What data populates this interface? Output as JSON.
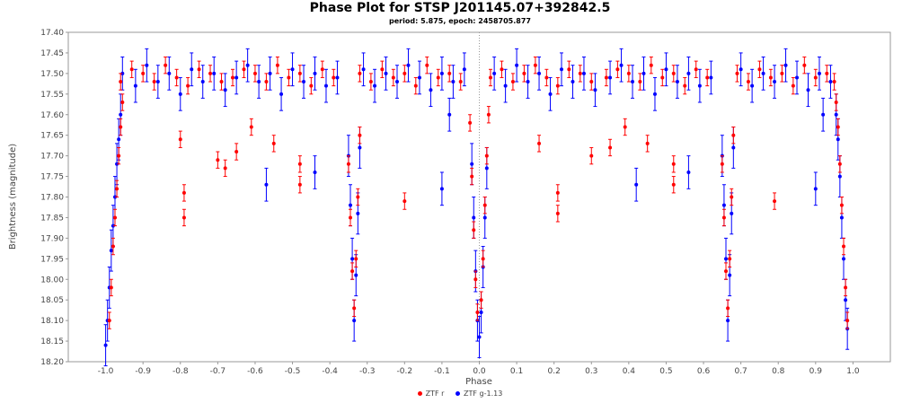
{
  "chart_data": {
    "type": "scatter",
    "title": "Phase Plot for STSP J201145.07+392842.5",
    "subtitle": "period: 5.875, epoch: 2458705.877",
    "xlabel": "Phase",
    "ylabel": "Brightness (magnitude)",
    "xlim": [
      -1.1,
      1.1
    ],
    "ylim": [
      17.4,
      18.2
    ],
    "y_inverted": true,
    "grid": false,
    "x_ticks": [
      "-1.0",
      "-0.9",
      "-0.8",
      "-0.7",
      "-0.6",
      "-0.5",
      "-0.4",
      "-0.3",
      "-0.2",
      "-0.1",
      "0.0",
      "0.1",
      "0.2",
      "0.3",
      "0.4",
      "0.5",
      "0.6",
      "0.7",
      "0.8",
      "0.9",
      "1.0"
    ],
    "y_ticks": [
      "17.40",
      "17.45",
      "17.50",
      "17.55",
      "17.60",
      "17.65",
      "17.70",
      "17.75",
      "17.80",
      "17.85",
      "17.90",
      "17.95",
      "18.00",
      "18.05",
      "18.10",
      "18.15",
      "18.20"
    ],
    "legend_position": "bottom-center",
    "series": [
      {
        "name": "ZTF r",
        "color": "#ff0000",
        "points": [
          [
            -0.96,
            17.52,
            0.02
          ],
          [
            -0.93,
            17.49,
            0.02
          ],
          [
            -0.9,
            17.5,
            0.02
          ],
          [
            -0.87,
            17.52,
            0.02
          ],
          [
            -0.84,
            17.48,
            0.02
          ],
          [
            -0.81,
            17.51,
            0.02
          ],
          [
            -0.78,
            17.53,
            0.02
          ],
          [
            -0.75,
            17.49,
            0.02
          ],
          [
            -0.72,
            17.5,
            0.02
          ],
          [
            -0.69,
            17.52,
            0.02
          ],
          [
            -0.66,
            17.51,
            0.02
          ],
          [
            -0.63,
            17.49,
            0.02
          ],
          [
            -0.6,
            17.5,
            0.02
          ],
          [
            -0.57,
            17.52,
            0.02
          ],
          [
            -0.54,
            17.48,
            0.02
          ],
          [
            -0.51,
            17.51,
            0.02
          ],
          [
            -0.48,
            17.5,
            0.02
          ],
          [
            -0.45,
            17.53,
            0.02
          ],
          [
            -0.42,
            17.49,
            0.02
          ],
          [
            -0.39,
            17.51,
            0.02
          ],
          [
            -0.32,
            17.5,
            0.02
          ],
          [
            -0.29,
            17.52,
            0.02
          ],
          [
            -0.26,
            17.49,
            0.02
          ],
          [
            -0.23,
            17.51,
            0.02
          ],
          [
            -0.2,
            17.5,
            0.02
          ],
          [
            -0.17,
            17.53,
            0.02
          ],
          [
            -0.14,
            17.48,
            0.02
          ],
          [
            -0.11,
            17.51,
            0.02
          ],
          [
            -0.08,
            17.5,
            0.02
          ],
          [
            -0.05,
            17.52,
            0.02
          ],
          [
            0.03,
            17.51,
            0.02
          ],
          [
            0.06,
            17.49,
            0.02
          ],
          [
            0.09,
            17.52,
            0.02
          ],
          [
            0.12,
            17.5,
            0.02
          ],
          [
            0.15,
            17.48,
            0.02
          ],
          [
            0.18,
            17.51,
            0.02
          ],
          [
            0.21,
            17.53,
            0.02
          ],
          [
            0.24,
            17.49,
            0.02
          ],
          [
            0.27,
            17.5,
            0.02
          ],
          [
            0.3,
            17.52,
            0.02
          ],
          [
            0.34,
            17.51,
            0.02
          ],
          [
            0.37,
            17.49,
            0.02
          ],
          [
            0.4,
            17.5,
            0.02
          ],
          [
            0.43,
            17.52,
            0.02
          ],
          [
            0.46,
            17.48,
            0.02
          ],
          [
            0.49,
            17.51,
            0.02
          ],
          [
            0.52,
            17.5,
            0.02
          ],
          [
            0.55,
            17.53,
            0.02
          ],
          [
            0.58,
            17.49,
            0.02
          ],
          [
            0.61,
            17.51,
            0.02
          ],
          [
            0.69,
            17.5,
            0.02
          ],
          [
            0.72,
            17.52,
            0.02
          ],
          [
            0.75,
            17.49,
            0.02
          ],
          [
            0.78,
            17.51,
            0.02
          ],
          [
            0.81,
            17.5,
            0.02
          ],
          [
            0.84,
            17.53,
            0.02
          ],
          [
            0.87,
            17.48,
            0.02
          ],
          [
            0.9,
            17.51,
            0.02
          ],
          [
            0.93,
            17.5,
            0.02
          ],
          [
            0.95,
            17.52,
            0.02
          ],
          [
            -0.8,
            17.66,
            0.02
          ],
          [
            -0.79,
            17.79,
            0.02
          ],
          [
            -0.79,
            17.85,
            0.02
          ],
          [
            -0.7,
            17.71,
            0.02
          ],
          [
            -0.68,
            17.73,
            0.02
          ],
          [
            -0.65,
            17.69,
            0.02
          ],
          [
            -0.61,
            17.63,
            0.02
          ],
          [
            -0.55,
            17.67,
            0.02
          ],
          [
            -0.48,
            17.72,
            0.02
          ],
          [
            -0.48,
            17.77,
            0.02
          ],
          [
            -0.2,
            17.81,
            0.02
          ],
          [
            0.16,
            17.67,
            0.02
          ],
          [
            0.21,
            17.79,
            0.02
          ],
          [
            0.21,
            17.84,
            0.02
          ],
          [
            0.3,
            17.7,
            0.02
          ],
          [
            0.35,
            17.68,
            0.02
          ],
          [
            0.39,
            17.63,
            0.02
          ],
          [
            0.45,
            17.67,
            0.02
          ],
          [
            0.52,
            17.72,
            0.02
          ],
          [
            0.52,
            17.77,
            0.02
          ],
          [
            0.79,
            17.81,
            0.02
          ],
          [
            -0.99,
            18.1,
            0.02
          ],
          [
            -0.985,
            18.02,
            0.02
          ],
          [
            -0.98,
            17.92,
            0.02
          ],
          [
            -0.975,
            17.85,
            0.02
          ],
          [
            -0.97,
            17.78,
            0.02
          ],
          [
            -0.965,
            17.7,
            0.02
          ],
          [
            -0.96,
            17.63,
            0.02
          ],
          [
            -0.955,
            17.57,
            0.02
          ],
          [
            -0.35,
            17.72,
            0.02
          ],
          [
            -0.345,
            17.85,
            0.02
          ],
          [
            -0.34,
            17.98,
            0.02
          ],
          [
            -0.335,
            18.07,
            0.02
          ],
          [
            -0.33,
            17.95,
            0.02
          ],
          [
            -0.325,
            17.8,
            0.02
          ],
          [
            -0.32,
            17.65,
            0.02
          ],
          [
            -0.025,
            17.62,
            0.02
          ],
          [
            -0.02,
            17.75,
            0.02
          ],
          [
            -0.015,
            17.88,
            0.02
          ],
          [
            -0.01,
            18.0,
            0.02
          ],
          [
            -0.005,
            18.08,
            0.02
          ],
          [
            0.005,
            18.05,
            0.02
          ],
          [
            0.01,
            17.95,
            0.02
          ],
          [
            0.015,
            17.82,
            0.02
          ],
          [
            0.02,
            17.7,
            0.02
          ],
          [
            0.025,
            17.6,
            0.02
          ],
          [
            0.65,
            17.72,
            0.02
          ],
          [
            0.655,
            17.85,
            0.02
          ],
          [
            0.66,
            17.98,
            0.02
          ],
          [
            0.665,
            18.07,
            0.02
          ],
          [
            0.67,
            17.95,
            0.02
          ],
          [
            0.675,
            17.8,
            0.02
          ],
          [
            0.68,
            17.65,
            0.02
          ],
          [
            0.955,
            17.57,
            0.02
          ],
          [
            0.96,
            17.63,
            0.02
          ],
          [
            0.965,
            17.72,
            0.02
          ],
          [
            0.97,
            17.82,
            0.02
          ],
          [
            0.975,
            17.92,
            0.02
          ],
          [
            0.98,
            18.02,
            0.02
          ],
          [
            0.985,
            18.1,
            0.02
          ]
        ]
      },
      {
        "name": "ZTF g-1.13",
        "color": "#0000ff",
        "points": [
          [
            -0.955,
            17.5,
            0.04
          ],
          [
            -0.92,
            17.53,
            0.04
          ],
          [
            -0.89,
            17.48,
            0.04
          ],
          [
            -0.86,
            17.52,
            0.04
          ],
          [
            -0.83,
            17.5,
            0.04
          ],
          [
            -0.8,
            17.55,
            0.04
          ],
          [
            -0.77,
            17.49,
            0.04
          ],
          [
            -0.74,
            17.52,
            0.04
          ],
          [
            -0.71,
            17.5,
            0.04
          ],
          [
            -0.68,
            17.54,
            0.04
          ],
          [
            -0.65,
            17.51,
            0.04
          ],
          [
            -0.62,
            17.48,
            0.04
          ],
          [
            -0.59,
            17.52,
            0.04
          ],
          [
            -0.56,
            17.5,
            0.04
          ],
          [
            -0.53,
            17.55,
            0.04
          ],
          [
            -0.5,
            17.49,
            0.04
          ],
          [
            -0.47,
            17.52,
            0.04
          ],
          [
            -0.44,
            17.5,
            0.04
          ],
          [
            -0.41,
            17.53,
            0.04
          ],
          [
            -0.38,
            17.51,
            0.04
          ],
          [
            -0.31,
            17.49,
            0.04
          ],
          [
            -0.28,
            17.53,
            0.04
          ],
          [
            -0.25,
            17.5,
            0.04
          ],
          [
            -0.22,
            17.52,
            0.04
          ],
          [
            -0.19,
            17.48,
            0.04
          ],
          [
            -0.16,
            17.51,
            0.04
          ],
          [
            -0.13,
            17.54,
            0.04
          ],
          [
            -0.1,
            17.5,
            0.04
          ],
          [
            -0.07,
            17.52,
            0.04
          ],
          [
            -0.04,
            17.49,
            0.04
          ],
          [
            0.04,
            17.5,
            0.04
          ],
          [
            0.07,
            17.53,
            0.04
          ],
          [
            0.1,
            17.48,
            0.04
          ],
          [
            0.13,
            17.52,
            0.04
          ],
          [
            0.16,
            17.5,
            0.04
          ],
          [
            0.19,
            17.55,
            0.04
          ],
          [
            0.22,
            17.49,
            0.04
          ],
          [
            0.25,
            17.52,
            0.04
          ],
          [
            0.28,
            17.5,
            0.04
          ],
          [
            0.31,
            17.54,
            0.04
          ],
          [
            0.35,
            17.51,
            0.04
          ],
          [
            0.38,
            17.48,
            0.04
          ],
          [
            0.41,
            17.52,
            0.04
          ],
          [
            0.44,
            17.5,
            0.04
          ],
          [
            0.47,
            17.55,
            0.04
          ],
          [
            0.5,
            17.49,
            0.04
          ],
          [
            0.53,
            17.52,
            0.04
          ],
          [
            0.56,
            17.5,
            0.04
          ],
          [
            0.59,
            17.53,
            0.04
          ],
          [
            0.62,
            17.51,
            0.04
          ],
          [
            0.7,
            17.49,
            0.04
          ],
          [
            0.73,
            17.53,
            0.04
          ],
          [
            0.76,
            17.5,
            0.04
          ],
          [
            0.79,
            17.52,
            0.04
          ],
          [
            0.82,
            17.48,
            0.04
          ],
          [
            0.85,
            17.51,
            0.04
          ],
          [
            0.88,
            17.54,
            0.04
          ],
          [
            0.91,
            17.5,
            0.04
          ],
          [
            0.94,
            17.52,
            0.04
          ],
          [
            -0.57,
            17.77,
            0.04
          ],
          [
            -0.44,
            17.74,
            0.04
          ],
          [
            -0.1,
            17.78,
            0.04
          ],
          [
            -0.08,
            17.6,
            0.04
          ],
          [
            0.42,
            17.77,
            0.04
          ],
          [
            0.56,
            17.74,
            0.04
          ],
          [
            0.9,
            17.78,
            0.04
          ],
          [
            0.92,
            17.6,
            0.04
          ],
          [
            -1.0,
            18.16,
            0.05
          ],
          [
            -0.995,
            18.1,
            0.05
          ],
          [
            -0.99,
            18.02,
            0.05
          ],
          [
            -0.985,
            17.93,
            0.05
          ],
          [
            -0.98,
            17.87,
            0.05
          ],
          [
            -0.975,
            17.8,
            0.05
          ],
          [
            -0.97,
            17.72,
            0.05
          ],
          [
            -0.965,
            17.66,
            0.05
          ],
          [
            -0.96,
            17.6,
            0.05
          ],
          [
            -0.35,
            17.7,
            0.05
          ],
          [
            -0.345,
            17.82,
            0.05
          ],
          [
            -0.34,
            17.95,
            0.05
          ],
          [
            -0.335,
            18.1,
            0.05
          ],
          [
            -0.33,
            17.99,
            0.05
          ],
          [
            -0.325,
            17.84,
            0.05
          ],
          [
            -0.32,
            17.68,
            0.05
          ],
          [
            -0.02,
            17.72,
            0.05
          ],
          [
            -0.015,
            17.85,
            0.05
          ],
          [
            -0.01,
            17.98,
            0.05
          ],
          [
            -0.005,
            18.1,
            0.05
          ],
          [
            0.0,
            18.14,
            0.05
          ],
          [
            0.005,
            18.08,
            0.05
          ],
          [
            0.01,
            17.97,
            0.05
          ],
          [
            0.015,
            17.85,
            0.05
          ],
          [
            0.02,
            17.73,
            0.05
          ],
          [
            0.65,
            17.7,
            0.05
          ],
          [
            0.655,
            17.82,
            0.05
          ],
          [
            0.66,
            17.95,
            0.05
          ],
          [
            0.665,
            18.1,
            0.05
          ],
          [
            0.67,
            17.99,
            0.05
          ],
          [
            0.675,
            17.84,
            0.05
          ],
          [
            0.68,
            17.68,
            0.05
          ],
          [
            0.955,
            17.6,
            0.05
          ],
          [
            0.96,
            17.66,
            0.05
          ],
          [
            0.965,
            17.75,
            0.05
          ],
          [
            0.97,
            17.85,
            0.05
          ],
          [
            0.975,
            17.95,
            0.05
          ],
          [
            0.98,
            18.05,
            0.05
          ],
          [
            0.985,
            18.12,
            0.05
          ]
        ]
      }
    ]
  }
}
